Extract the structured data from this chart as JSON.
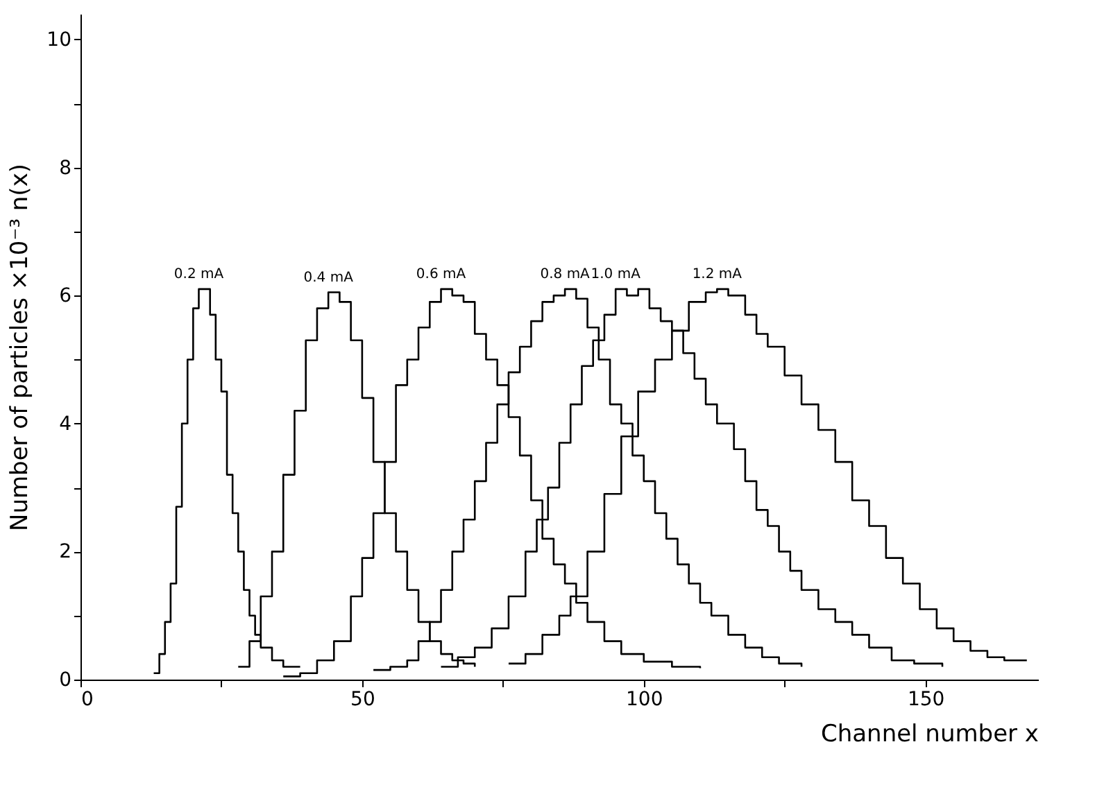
{
  "chart_data": {
    "type": "step",
    "xlabel": "Channel number x",
    "ylabel": "Number of particles ×10⁻³ n(x)",
    "xlim": [
      0,
      170
    ],
    "ylim": [
      0,
      10.4
    ],
    "xticks": [
      0,
      {
        "value": 25,
        "label": null
      },
      50,
      {
        "value": 75,
        "label": null
      },
      100,
      {
        "value": 125,
        "label": null
      },
      150
    ],
    "yticks": [
      0,
      {
        "value": 1,
        "label": null
      },
      2,
      {
        "value": 3,
        "label": null
      },
      4,
      {
        "value": 5,
        "label": null
      },
      6,
      {
        "value": 7,
        "label": null
      },
      8,
      {
        "value": 9,
        "label": null
      },
      10
    ],
    "grid": false,
    "marker": "none",
    "line_style": "solid",
    "series": [
      {
        "name": "0.2 mA",
        "color": "#000000",
        "x": [
          13,
          14,
          15,
          16,
          17,
          18,
          19,
          20,
          21,
          22,
          23,
          24,
          25,
          26,
          27,
          28,
          29,
          30,
          31,
          32,
          34,
          36,
          39
        ],
        "values": [
          0.1,
          0.4,
          0.9,
          1.5,
          2.7,
          4.0,
          5.0,
          5.8,
          6.1,
          6.1,
          5.7,
          5.0,
          4.5,
          3.2,
          2.6,
          2.0,
          1.4,
          1.0,
          0.7,
          0.5,
          0.3,
          0.2,
          0.2
        ]
      },
      {
        "name": "0.4 mA",
        "color": "#000000",
        "x": [
          28,
          30,
          32,
          34,
          36,
          38,
          40,
          42,
          44,
          46,
          48,
          50,
          52,
          54,
          56,
          58,
          60,
          62,
          64,
          66,
          68,
          70
        ],
        "values": [
          0.2,
          0.6,
          1.3,
          2.0,
          3.2,
          4.2,
          5.3,
          5.8,
          6.05,
          5.9,
          5.3,
          4.4,
          3.4,
          2.6,
          2.0,
          1.4,
          0.9,
          0.6,
          0.4,
          0.3,
          0.25,
          0.2
        ]
      },
      {
        "name": "0.6 mA",
        "color": "#000000",
        "x": [
          36,
          39,
          42,
          45,
          48,
          50,
          52,
          54,
          56,
          58,
          60,
          62,
          64,
          66,
          68,
          70,
          72,
          74,
          76,
          78,
          80,
          82,
          84,
          86,
          88,
          90,
          93,
          96,
          100,
          105,
          110
        ],
        "values": [
          0.05,
          0.1,
          0.3,
          0.6,
          1.3,
          1.9,
          2.6,
          3.4,
          4.6,
          5.0,
          5.5,
          5.9,
          6.1,
          6.0,
          5.9,
          5.4,
          5.0,
          4.6,
          4.1,
          3.5,
          2.8,
          2.2,
          1.8,
          1.5,
          1.2,
          0.9,
          0.6,
          0.4,
          0.28,
          0.2,
          0.18
        ]
      },
      {
        "name": "0.8 mA",
        "color": "#000000",
        "x": [
          52,
          55,
          58,
          60,
          62,
          64,
          66,
          68,
          70,
          72,
          74,
          76,
          78,
          80,
          82,
          84,
          86,
          88,
          90,
          92,
          94,
          96,
          98,
          100,
          102,
          104,
          106,
          108,
          110,
          112,
          115,
          118,
          121,
          124,
          128
        ],
        "values": [
          0.15,
          0.2,
          0.3,
          0.6,
          0.9,
          1.4,
          2.0,
          2.5,
          3.1,
          3.7,
          4.3,
          4.8,
          5.2,
          5.6,
          5.9,
          6.0,
          6.1,
          5.95,
          5.5,
          5.0,
          4.3,
          4.0,
          3.5,
          3.1,
          2.6,
          2.2,
          1.8,
          1.5,
          1.2,
          1.0,
          0.7,
          0.5,
          0.35,
          0.25,
          0.2
        ]
      },
      {
        "name": "1.0 mA",
        "color": "#000000",
        "x": [
          64,
          67,
          70,
          73,
          76,
          79,
          81,
          83,
          85,
          87,
          89,
          91,
          93,
          95,
          97,
          99,
          101,
          103,
          105,
          107,
          109,
          111,
          113,
          116,
          118,
          120,
          122,
          124,
          126,
          128,
          131,
          134,
          137,
          140,
          144,
          148,
          153
        ],
        "values": [
          0.2,
          0.35,
          0.5,
          0.8,
          1.3,
          2.0,
          2.5,
          3.0,
          3.7,
          4.3,
          4.9,
          5.3,
          5.7,
          6.1,
          6.0,
          6.1,
          5.8,
          5.6,
          5.45,
          5.1,
          4.7,
          4.3,
          4.0,
          3.6,
          3.1,
          2.65,
          2.4,
          2.0,
          1.7,
          1.4,
          1.1,
          0.9,
          0.7,
          0.5,
          0.3,
          0.25,
          0.2
        ]
      },
      {
        "name": "1.2 mA",
        "color": "#000000",
        "x": [
          76,
          79,
          82,
          85,
          87,
          90,
          93,
          96,
          99,
          102,
          105,
          108,
          111,
          113,
          115,
          118,
          120,
          122,
          125,
          128,
          131,
          134,
          137,
          140,
          143,
          146,
          149,
          152,
          155,
          158,
          161,
          164,
          168
        ],
        "values": [
          0.25,
          0.4,
          0.7,
          1.0,
          1.3,
          2.0,
          2.9,
          3.8,
          4.5,
          5.0,
          5.45,
          5.9,
          6.05,
          6.1,
          6.0,
          5.7,
          5.4,
          5.2,
          4.75,
          4.3,
          3.9,
          3.4,
          2.8,
          2.4,
          1.9,
          1.5,
          1.1,
          0.8,
          0.6,
          0.45,
          0.35,
          0.3,
          0.3
        ]
      }
    ]
  }
}
